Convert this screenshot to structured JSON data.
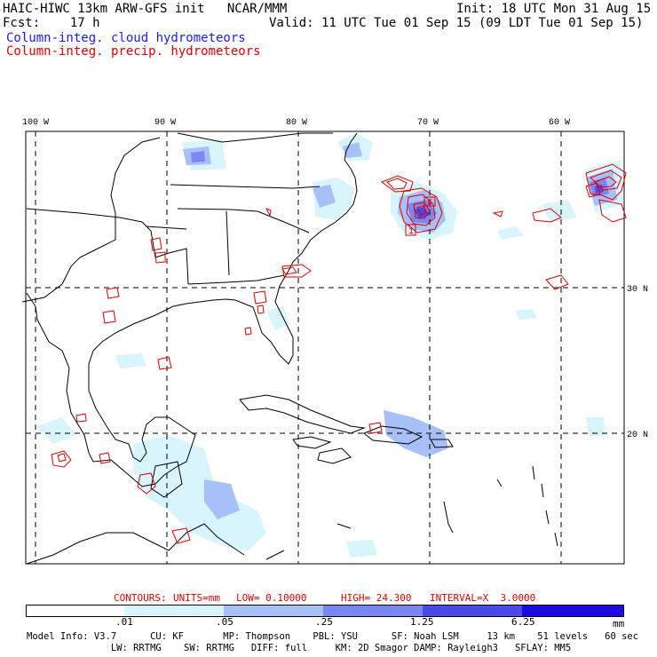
{
  "header": {
    "title": "HAIC-HIWC 13km ARW-GFS init   NCAR/MMM",
    "init": "Init: 18 UTC Mon 31 Aug 15",
    "fcst": "Fcst:    17 h",
    "valid": "Valid: 11 UTC Tue 01 Sep 15 (09 LDT Tue 01 Sep 15)",
    "field1": "Column-integ. cloud hydrometeors",
    "field2": "Column-integ. precip. hydrometeors"
  },
  "axes": {
    "lon_labels": [
      "100 W",
      "90 W",
      "80 W",
      "70 W",
      "60 W"
    ],
    "lat_labels": [
      "30 N",
      "20 N"
    ]
  },
  "contours": {
    "label": "CONTOURS:",
    "units": "UNITS=mm",
    "low": "LOW= 0.10000",
    "high": "HIGH= 24.300",
    "interval": "INTERVAL=X  3.0000"
  },
  "contour_labels": [
    "5",
    "1"
  ],
  "colorbar": {
    "ticks": [
      ".01",
      ".05",
      ".25",
      "1.25",
      "6.25"
    ],
    "units": "mm",
    "colors": [
      "#ffffff",
      "#d8f4fc",
      "#a8c0f8",
      "#7c86f0",
      "#4a4ae8",
      "#1a0ae0"
    ]
  },
  "model_info": {
    "line1": "Model Info: V3.7      CU: KF       MP: Thompson    PBL: YSU      SF: Noah LSM     13 km    51 levels   60 sec",
    "line2": "               LW: RRTMG    SW: RRTMG   DIFF: full     KM: 2D Smagor DAMP: Rayleigh3   SFLAY: MM5"
  },
  "colors": {
    "cloud": "#1a1aff",
    "precip": "#e00000"
  }
}
